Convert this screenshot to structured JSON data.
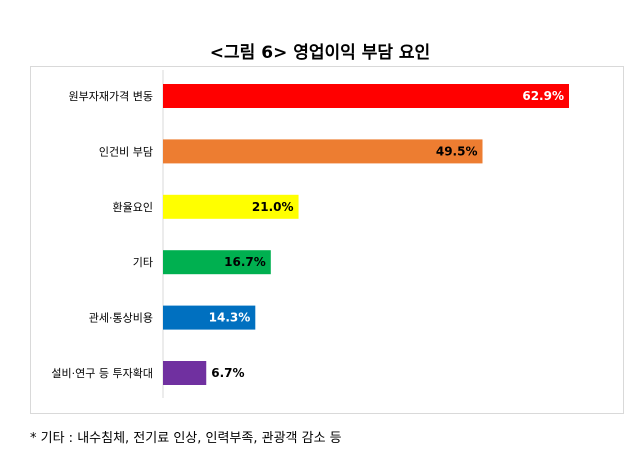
{
  "title": "<그림 6> 영업이익 부담 요인",
  "footnote": "* 기타 : 내수침체, 전기료 인상, 인력부족, 관광객 감소 등",
  "chart_data": {
    "type": "bar",
    "orientation": "horizontal",
    "categories": [
      "원부자재가격 변동",
      "인건비 부담",
      "환율요인",
      "기타",
      "관세·통상비용",
      "설비·연구 등 투자확대"
    ],
    "values": [
      62.9,
      49.5,
      21.0,
      16.7,
      14.3,
      6.7
    ],
    "labels": [
      "62.9%",
      "49.5%",
      "21.0%",
      "16.7%",
      "14.3%",
      "6.7%"
    ],
    "colors": [
      "#ff0000",
      "#ed7d31",
      "#ffff00",
      "#00b050",
      "#0070c0",
      "#7030a0"
    ],
    "label_colors": [
      "#ffffff",
      "#000000",
      "#000000",
      "#000000",
      "#ffffff",
      "#000000"
    ],
    "xlim": [
      0,
      70
    ],
    "grid": false,
    "legend": "none"
  }
}
